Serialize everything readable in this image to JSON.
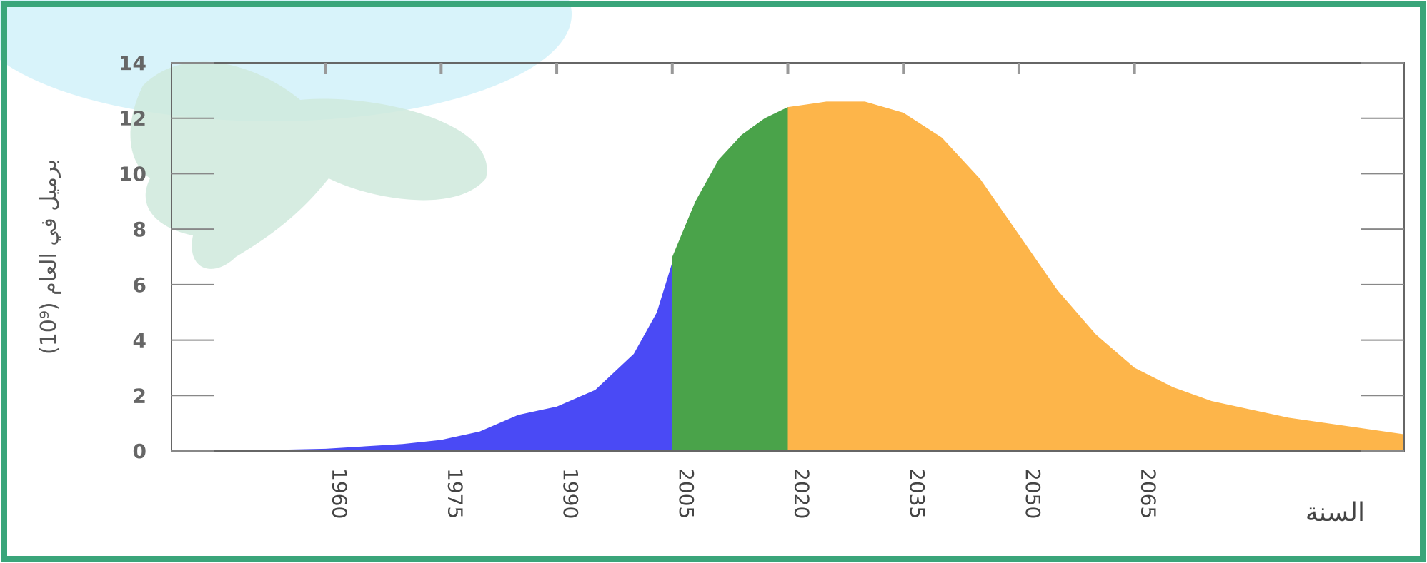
{
  "chart_data": {
    "type": "area",
    "y_label": "برميل في العام (10⁹)",
    "x_label": "السنة",
    "xlim": [
      1940,
      2100
    ],
    "xticks": [
      1960,
      1975,
      1990,
      2005,
      2020,
      2035,
      2050,
      2065
    ],
    "ylim": [
      0,
      14
    ],
    "yticks": [
      0,
      2,
      4,
      6,
      8,
      10,
      12,
      14
    ],
    "series": [
      {
        "color": "#4a4af5",
        "x": [
          1940,
          1950,
          1960,
          1970,
          1975,
          1980,
          1985,
          1990,
          1995,
          2000,
          2003,
          2005
        ],
        "values": [
          0,
          0.02,
          0.08,
          0.25,
          0.4,
          0.7,
          1.3,
          1.6,
          2.2,
          3.5,
          5,
          6.8
        ]
      },
      {
        "color": "#4aa34a",
        "x": [
          2005,
          2008,
          2011,
          2014,
          2017,
          2020
        ],
        "values": [
          7,
          9,
          10.5,
          11.4,
          12,
          12.4
        ]
      },
      {
        "color": "#fdb54a",
        "x": [
          2020,
          2025,
          2030,
          2035,
          2040,
          2045,
          2050,
          2055,
          2060,
          2065,
          2070,
          2075,
          2080,
          2085,
          2090,
          2095,
          2100
        ],
        "values": [
          12.4,
          12.6,
          12.6,
          12.2,
          11.3,
          9.8,
          7.8,
          5.8,
          4.2,
          3,
          2.3,
          1.8,
          1.5,
          1.2,
          1,
          0.8,
          0.6
        ]
      }
    ]
  }
}
